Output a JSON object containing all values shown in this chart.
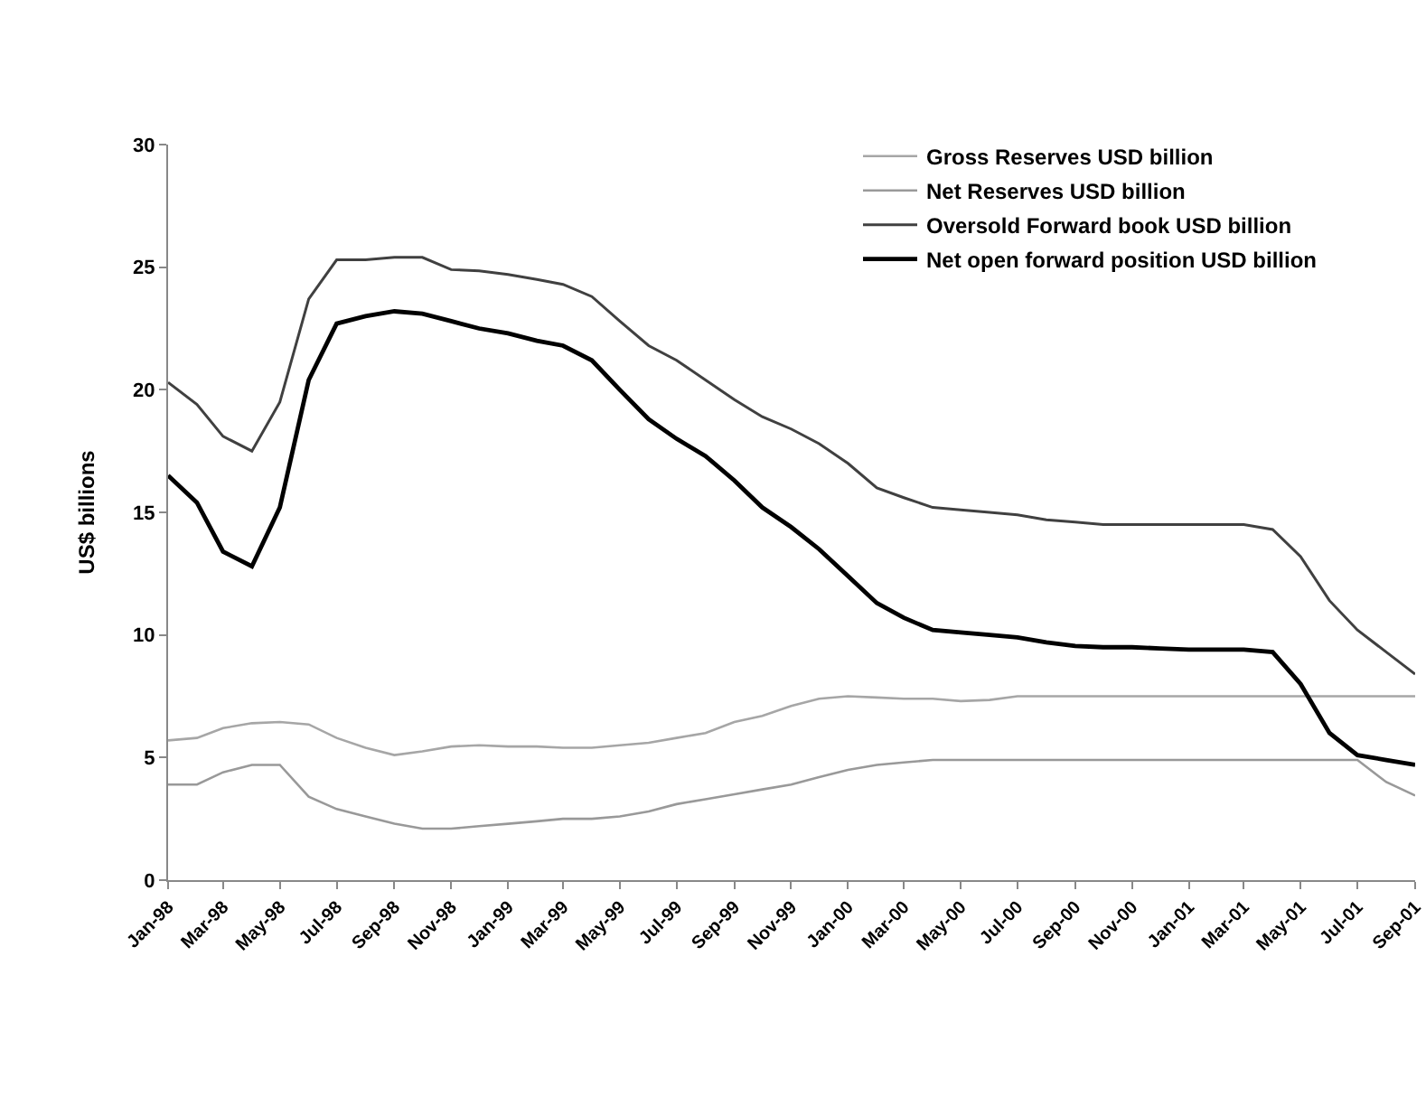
{
  "chart_data": {
    "type": "line",
    "ylabel": "US$ billions",
    "x": [
      "1998-01",
      "1998-02",
      "1998-03",
      "1998-04",
      "1998-05",
      "1998-06",
      "1998-07",
      "1998-08",
      "1998-09",
      "1998-10",
      "1998-11",
      "1998-12",
      "1999-01",
      "1999-02",
      "1999-03",
      "1999-04",
      "1999-05",
      "1999-06",
      "1999-07",
      "1999-08",
      "1999-09",
      "1999-10",
      "1999-11",
      "1999-12",
      "2000-01",
      "2000-02",
      "2000-03",
      "2000-04",
      "2000-05",
      "2000-06",
      "2000-07",
      "2000-08",
      "2000-09",
      "2000-10",
      "2000-11",
      "2000-12",
      "2001-01",
      "2001-02",
      "2001-03",
      "2001-04",
      "2001-05",
      "2001-06",
      "2001-07",
      "2001-08",
      "2001-09"
    ],
    "series": [
      {
        "name": "Gross Reserves USD billion",
        "color": "#a6a6a6",
        "values": [
          5.7,
          5.8,
          6.2,
          6.4,
          6.45,
          6.35,
          5.8,
          5.4,
          5.1,
          5.25,
          5.45,
          5.5,
          5.45,
          5.45,
          5.4,
          5.4,
          5.5,
          5.6,
          5.8,
          6.0,
          6.45,
          6.7,
          7.1,
          7.4,
          7.5,
          7.45,
          7.4,
          7.4,
          7.3,
          7.35,
          7.5,
          7.5,
          7.5,
          7.5,
          7.5,
          7.5,
          7.5,
          7.5,
          7.5,
          7.5,
          7.5,
          7.5,
          7.5,
          7.5,
          7.5
        ]
      },
      {
        "name": "Net Reserves USD billion",
        "color": "#999999",
        "values": [
          3.9,
          3.9,
          4.4,
          4.7,
          4.7,
          3.4,
          2.9,
          2.6,
          2.3,
          2.1,
          2.1,
          2.2,
          2.3,
          2.4,
          2.5,
          2.5,
          2.6,
          2.8,
          3.1,
          3.3,
          3.5,
          3.7,
          3.9,
          4.2,
          4.5,
          4.7,
          4.8,
          4.9,
          4.9,
          4.9,
          4.9,
          4.9,
          4.9,
          4.9,
          4.9,
          4.9,
          4.9,
          4.9,
          4.9,
          4.9,
          4.9,
          4.9,
          4.9,
          4.0,
          3.45
        ]
      },
      {
        "name": "Oversold Forward book USD billion",
        "color": "#404040",
        "values": [
          20.3,
          19.4,
          18.1,
          17.5,
          19.5,
          23.7,
          25.3,
          25.3,
          25.4,
          25.4,
          24.9,
          24.85,
          24.7,
          24.5,
          24.3,
          23.8,
          22.8,
          21.8,
          21.2,
          20.4,
          19.6,
          18.9,
          18.4,
          17.8,
          17.0,
          16.0,
          15.6,
          15.2,
          15.1,
          15.0,
          14.9,
          14.7,
          14.6,
          14.5,
          14.5,
          14.5,
          14.5,
          14.5,
          14.5,
          14.3,
          13.2,
          11.4,
          10.2,
          9.3,
          8.4
        ]
      },
      {
        "name": "Net open forward position USD billion",
        "color": "#000000",
        "values": [
          16.5,
          15.4,
          13.4,
          12.8,
          15.2,
          20.4,
          22.7,
          23.0,
          23.2,
          23.1,
          22.8,
          22.5,
          22.3,
          22.0,
          21.8,
          21.2,
          20.0,
          18.8,
          18.0,
          17.3,
          16.3,
          15.2,
          14.4,
          13.5,
          12.4,
          11.3,
          10.7,
          10.2,
          10.1,
          10.0,
          9.9,
          9.7,
          9.55,
          9.5,
          9.5,
          9.45,
          9.4,
          9.4,
          9.4,
          9.3,
          8.0,
          6.0,
          5.1,
          4.9,
          4.7
        ]
      }
    ],
    "xlim": [
      "1998-01",
      "2001-09"
    ],
    "xticks": [
      {
        "value": "1998-01",
        "label": "Jan-98"
      },
      {
        "value": "1998-03",
        "label": "Mar-98"
      },
      {
        "value": "1998-05",
        "label": "May-98"
      },
      {
        "value": "1998-07",
        "label": "Jul-98"
      },
      {
        "value": "1998-09",
        "label": "Sep-98"
      },
      {
        "value": "1998-11",
        "label": "Nov-98"
      },
      {
        "value": "1999-01",
        "label": "Jan-99"
      },
      {
        "value": "1999-03",
        "label": "Mar-99"
      },
      {
        "value": "1999-05",
        "label": "May-99"
      },
      {
        "value": "1999-07",
        "label": "Jul-99"
      },
      {
        "value": "1999-09",
        "label": "Sep-99"
      },
      {
        "value": "1999-11",
        "label": "Nov-99"
      },
      {
        "value": "2000-01",
        "label": "Jan-00"
      },
      {
        "value": "2000-03",
        "label": "Mar-00"
      },
      {
        "value": "2000-05",
        "label": "May-00"
      },
      {
        "value": "2000-07",
        "label": "Jul-00"
      },
      {
        "value": "2000-09",
        "label": "Sep-00"
      },
      {
        "value": "2000-11",
        "label": "Nov-00"
      },
      {
        "value": "2001-01",
        "label": "Jan-01"
      },
      {
        "value": "2001-03",
        "label": "Mar-01"
      },
      {
        "value": "2001-05",
        "label": "May-01"
      },
      {
        "value": "2001-07",
        "label": "Jul-01"
      },
      {
        "value": "2001-09",
        "label": "Sep-01"
      }
    ],
    "ylim": [
      0,
      30
    ],
    "yticks": [
      0,
      5,
      10,
      15,
      20,
      25,
      30
    ],
    "grid": false,
    "legend": "top right"
  }
}
